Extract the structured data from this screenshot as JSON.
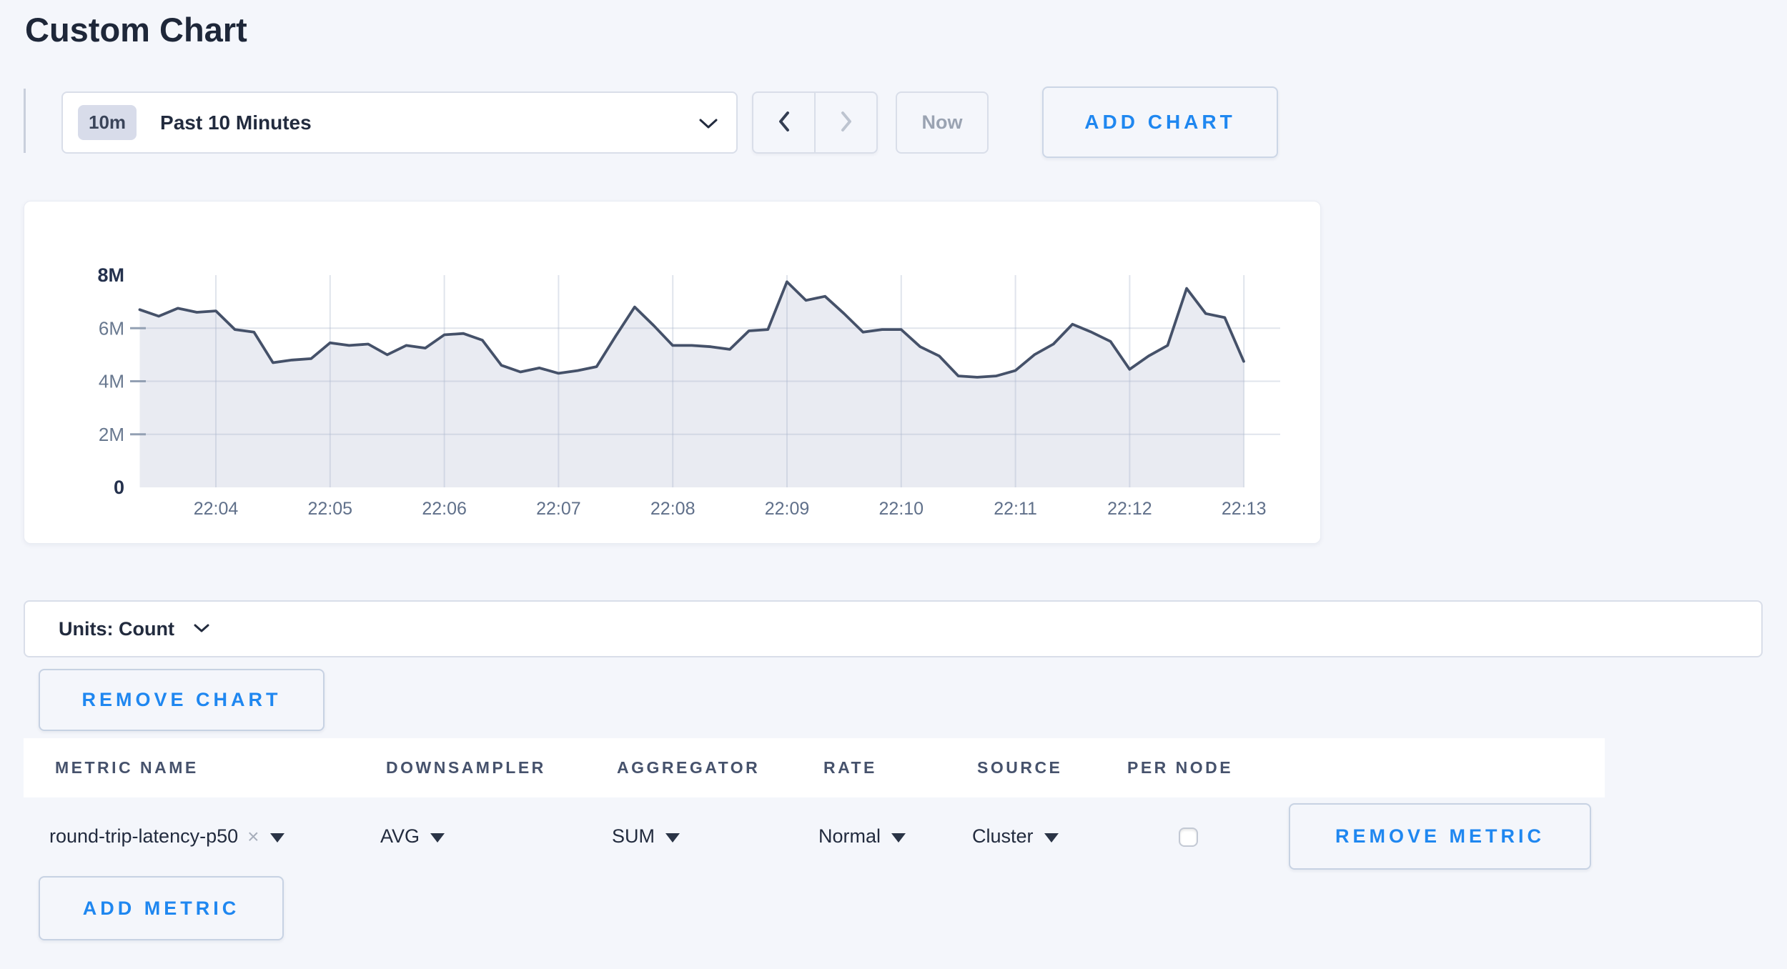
{
  "page_title": "Custom Chart",
  "colors": {
    "accent_blue": "#1f87f0",
    "page_background": "#f4f6fb",
    "dark_text": "#222b3e",
    "muted_text": "#9aa3b2"
  },
  "toolbar": {
    "time_range_badge": "10m",
    "time_range_label": "Past 10 Minutes",
    "now_label": "Now",
    "add_chart_label": "ADD CHART"
  },
  "chart_data": {
    "type": "area",
    "title": "",
    "unit": "Count",
    "ylim": [
      0,
      8000000
    ],
    "grid": true,
    "x_start": "22:03:20",
    "x_end": "22:13:00",
    "interval_seconds": 10,
    "x_ticks": [
      "22:04",
      "22:05",
      "22:06",
      "22:07",
      "22:08",
      "22:09",
      "22:10",
      "22:11",
      "22:12",
      "22:13"
    ],
    "y_ticks": [
      {
        "value": 0,
        "label": "0",
        "emphasis": true
      },
      {
        "value": 2000000,
        "label": "2M",
        "emphasis": false
      },
      {
        "value": 4000000,
        "label": "4M",
        "emphasis": false
      },
      {
        "value": 6000000,
        "label": "6M",
        "emphasis": false
      },
      {
        "value": 8000000,
        "label": "8M",
        "emphasis": true
      }
    ],
    "series": [
      {
        "name": "round-trip-latency-p50",
        "values": [
          6700000,
          6450000,
          6750000,
          6600000,
          6650000,
          5950000,
          5850000,
          4700000,
          4800000,
          4850000,
          5450000,
          5350000,
          5400000,
          5000000,
          5350000,
          5250000,
          5750000,
          5800000,
          5550000,
          4600000,
          4350000,
          4500000,
          4300000,
          4400000,
          4550000,
          5700000,
          6800000,
          6100000,
          5350000,
          5350000,
          5300000,
          5200000,
          5900000,
          5950000,
          7750000,
          7050000,
          7200000,
          6550000,
          5850000,
          5950000,
          5950000,
          5300000,
          4950000,
          4200000,
          4150000,
          4200000,
          4400000,
          5000000,
          5400000,
          6150000,
          5850000,
          5500000,
          4450000,
          4950000,
          5350000,
          7500000,
          6550000,
          6400000,
          4750000
        ]
      }
    ],
    "line_color": "#455169",
    "fill_color": "#e9ebf2",
    "grid_color": "rgba(174,184,206,0.38)",
    "tick_dash_color": "#93a0b3",
    "legend": "none"
  },
  "units_bar": {
    "label": "Units: Count"
  },
  "chart_actions": {
    "remove_chart_label": "REMOVE CHART"
  },
  "metrics_table": {
    "columns": [
      "METRIC NAME",
      "DOWNSAMPLER",
      "AGGREGATOR",
      "RATE",
      "SOURCE",
      "PER NODE"
    ],
    "rows": [
      {
        "metric_name": "round-trip-latency-p50",
        "remove_token": "×",
        "downsampler": "AVG",
        "aggregator": "SUM",
        "rate": "Normal",
        "source": "Cluster",
        "per_node_checked": false,
        "remove_label": "REMOVE METRIC"
      }
    ],
    "add_metric_label": "ADD METRIC"
  }
}
